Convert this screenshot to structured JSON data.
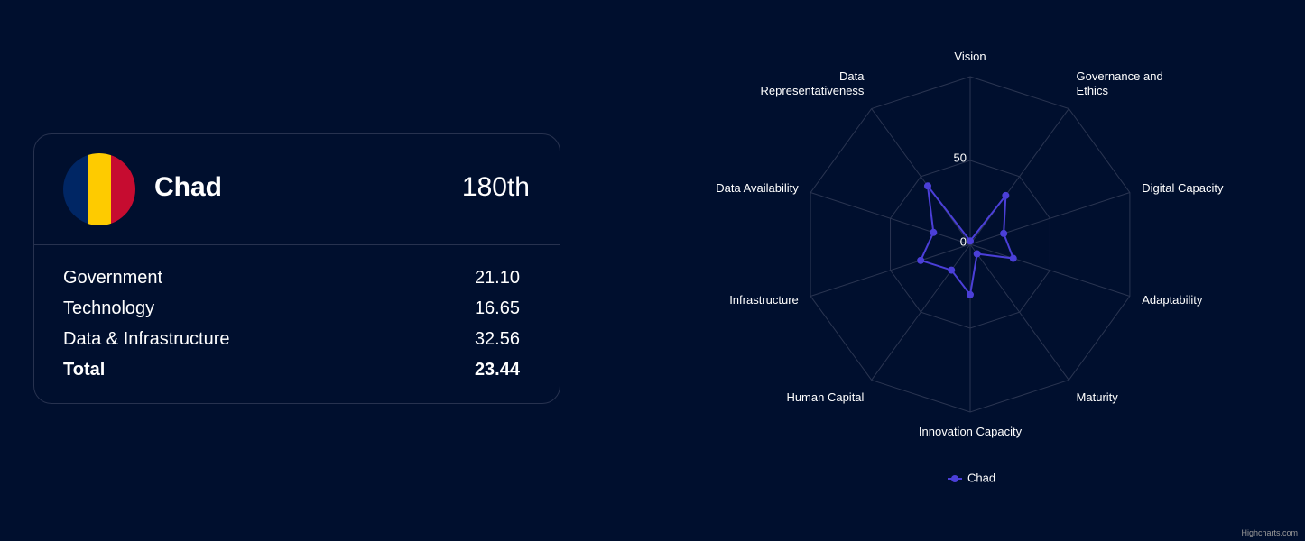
{
  "card": {
    "country": "Chad",
    "rank": "180th",
    "rows": [
      [
        "Government",
        "21.10"
      ],
      [
        "Technology",
        "16.65"
      ],
      [
        "Data & Infrastructure",
        "32.56"
      ]
    ],
    "total": [
      "Total",
      "23.44"
    ]
  },
  "chart_data": {
    "type": "radar",
    "categories": [
      "Vision",
      "Governance and Ethics",
      "Digital Capacity",
      "Adaptability",
      "Maturity",
      "Innovation Capacity",
      "Human Capital",
      "Infrastructure",
      "Data Availability",
      "Data Representativeness"
    ],
    "series": [
      {
        "name": "Chad",
        "color": "#4b3fd8",
        "values": [
          2,
          36,
          21,
          27,
          7,
          30,
          19,
          31,
          23,
          43
        ]
      }
    ],
    "ylim": [
      0,
      100
    ],
    "yticks": [
      0,
      50
    ],
    "grid": true
  },
  "credit": "Highcharts.com"
}
